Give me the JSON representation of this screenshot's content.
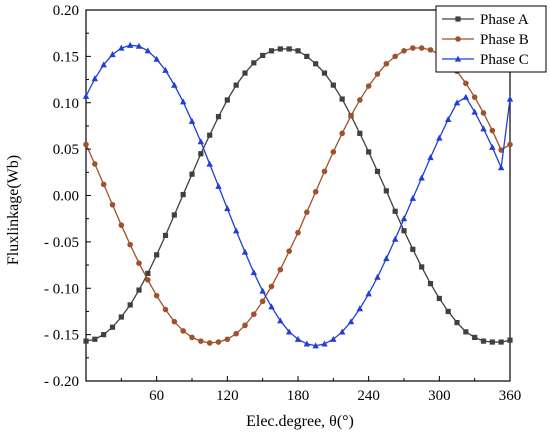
{
  "chart_data": {
    "type": "line",
    "xlabel": "Elec.degree, θ(°)",
    "ylabel": "Fluxlinkage(Wb)",
    "xlim": [
      0,
      360
    ],
    "ylim": [
      -0.2,
      0.2
    ],
    "x_ticks": [
      60,
      120,
      180,
      240,
      300,
      360
    ],
    "x_tick_labels": [
      "60",
      "120",
      "180",
      "240",
      "300",
      "360"
    ],
    "y_ticks": [
      -0.2,
      -0.15,
      -0.1,
      -0.05,
      0.0,
      0.05,
      0.1,
      0.15,
      0.2
    ],
    "y_tick_labels": [
      "- 0.20",
      "- 0.15",
      "- 0.10",
      "- 0.05",
      "0.00",
      "0.05",
      "0.10",
      "0.15",
      "0.20"
    ],
    "grid": false,
    "legend_position": "top-right",
    "x": [
      0,
      7.5,
      15,
      22.5,
      30,
      37.5,
      45,
      52.5,
      60,
      67.5,
      75,
      82.5,
      90,
      97.5,
      105,
      112.5,
      120,
      127.5,
      135,
      142.5,
      150,
      157.5,
      165,
      172.5,
      180,
      187.5,
      195,
      202.5,
      210,
      217.5,
      225,
      232.5,
      240,
      247.5,
      255,
      262.5,
      270,
      277.5,
      285,
      292.5,
      300,
      307.5,
      315,
      322.5,
      330,
      337.5,
      345,
      352.5,
      360
    ],
    "series": [
      {
        "name": "Phase A",
        "color": "#404040",
        "marker": "square",
        "values": [
          -0.157,
          -0.155,
          -0.15,
          -0.142,
          -0.131,
          -0.118,
          -0.102,
          -0.084,
          -0.064,
          -0.043,
          -0.021,
          0.001,
          0.023,
          0.045,
          0.065,
          0.085,
          0.103,
          0.119,
          0.132,
          0.143,
          0.151,
          0.156,
          0.158,
          0.158,
          0.156,
          0.15,
          0.142,
          0.132,
          0.119,
          0.104,
          0.086,
          0.067,
          0.047,
          0.026,
          0.005,
          -0.017,
          -0.038,
          -0.058,
          -0.077,
          -0.095,
          -0.111,
          -0.125,
          -0.137,
          -0.147,
          -0.153,
          -0.157,
          -0.158,
          -0.158,
          -0.156
        ]
      },
      {
        "name": "Phase B",
        "color": "#a0522d",
        "marker": "circle",
        "values": [
          0.055,
          0.034,
          0.012,
          -0.01,
          -0.032,
          -0.053,
          -0.073,
          -0.091,
          -0.108,
          -0.123,
          -0.136,
          -0.146,
          -0.153,
          -0.157,
          -0.159,
          -0.158,
          -0.155,
          -0.149,
          -0.14,
          -0.128,
          -0.114,
          -0.098,
          -0.08,
          -0.06,
          -0.04,
          -0.018,
          0.004,
          0.026,
          0.047,
          0.067,
          0.086,
          0.103,
          0.118,
          0.131,
          0.142,
          0.15,
          0.156,
          0.159,
          0.159,
          0.157,
          0.152,
          0.144,
          0.134,
          0.121,
          0.106,
          0.089,
          0.07,
          0.049,
          0.055
        ]
      },
      {
        "name": "Phase C",
        "color": "#1f3fd6",
        "marker": "triangle",
        "values": [
          0.107,
          0.126,
          0.141,
          0.152,
          0.159,
          0.162,
          0.161,
          0.156,
          0.147,
          0.135,
          0.119,
          0.101,
          0.08,
          0.058,
          0.034,
          0.01,
          -0.014,
          -0.038,
          -0.061,
          -0.083,
          -0.103,
          -0.12,
          -0.135,
          -0.147,
          -0.155,
          -0.16,
          -0.162,
          -0.16,
          -0.155,
          -0.147,
          -0.136,
          -0.122,
          -0.106,
          -0.088,
          -0.068,
          -0.047,
          -0.025,
          -0.003,
          0.019,
          0.041,
          0.062,
          0.082,
          0.1,
          0.106,
          0.09,
          0.072,
          0.052,
          0.03,
          0.104
        ]
      }
    ]
  }
}
